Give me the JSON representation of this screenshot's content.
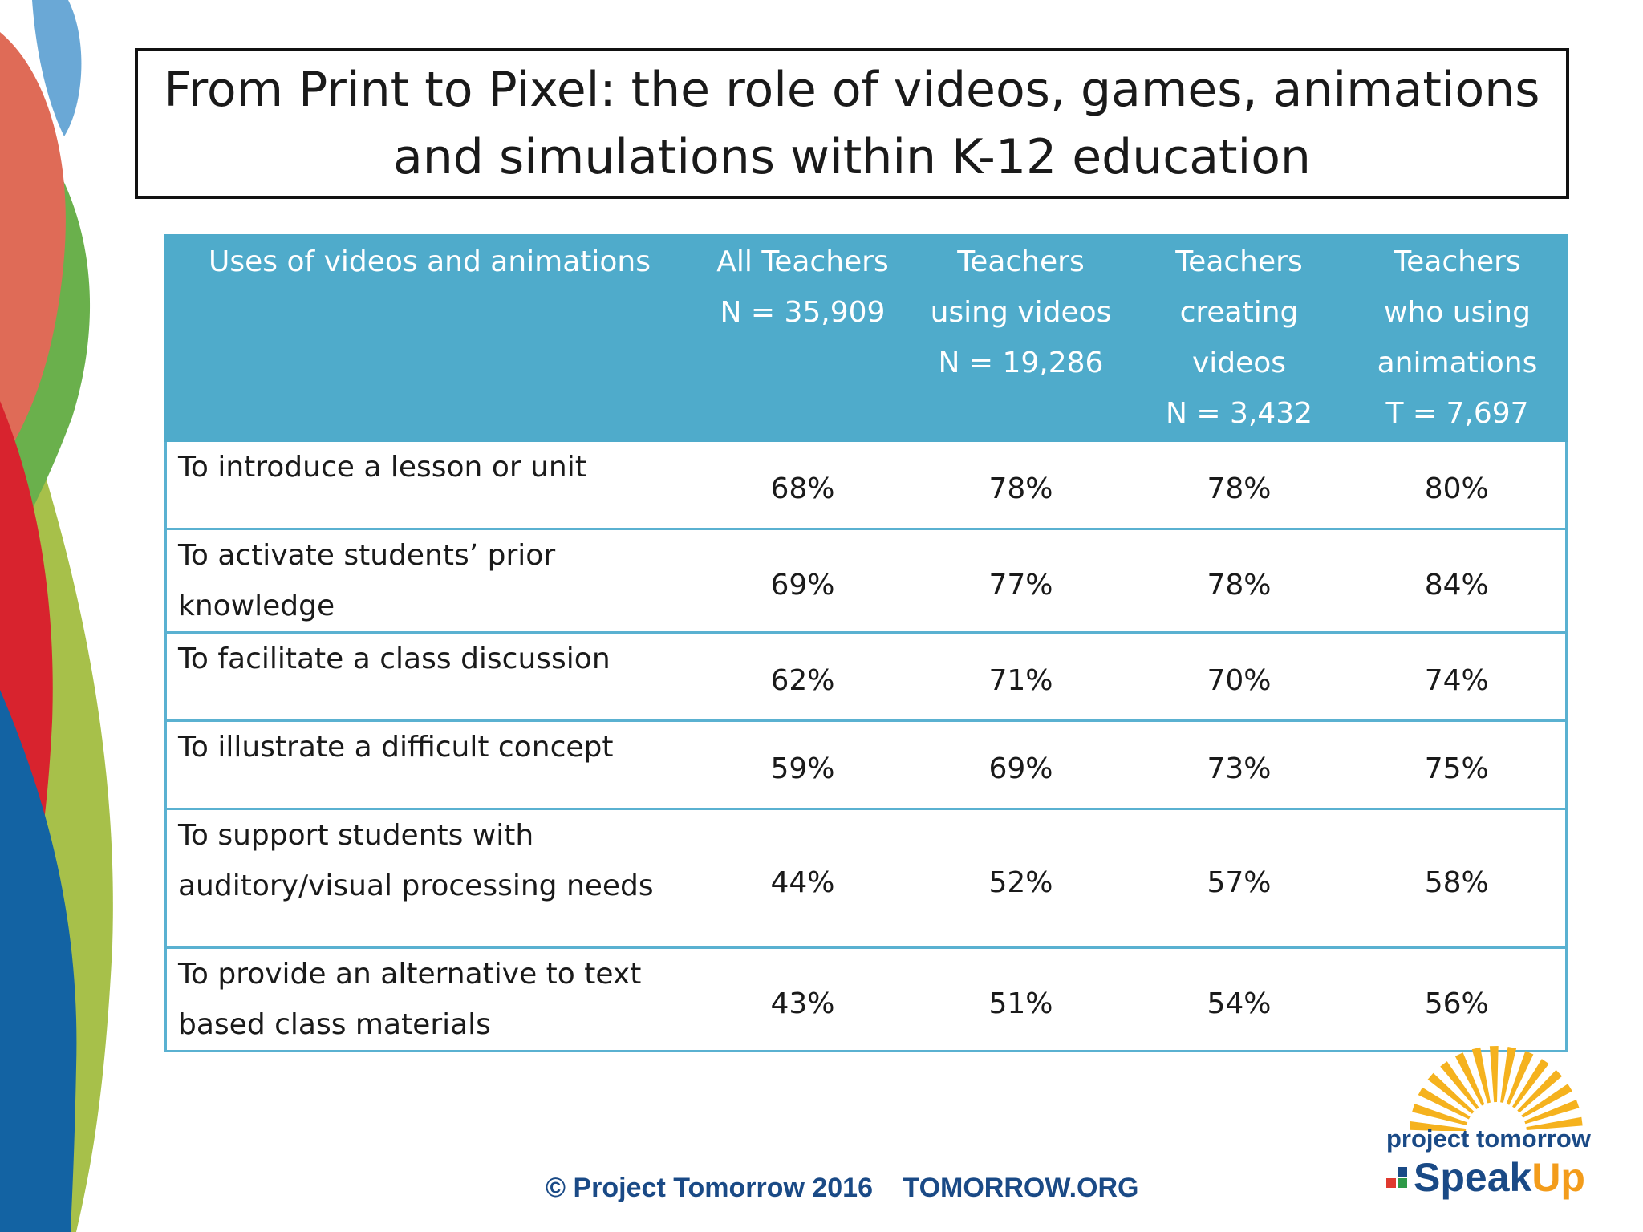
{
  "title": {
    "lines": [
      "From Print to Pixel:  the role of videos, games, animations",
      "and simulations within K-12 education"
    ]
  },
  "table": {
    "columns": [
      {
        "lines": [
          "Uses of videos and animations"
        ]
      },
      {
        "lines": [
          "All Teachers",
          "N = 35,909"
        ]
      },
      {
        "lines": [
          "Teachers",
          "using videos",
          "N = 19,286"
        ]
      },
      {
        "lines": [
          "Teachers",
          "creating",
          "videos",
          "N = 3,432"
        ]
      },
      {
        "lines": [
          "Teachers",
          "who using",
          "animations",
          "T = 7,697"
        ]
      }
    ],
    "rows": [
      {
        "use": [
          "To introduce a lesson or unit"
        ],
        "values": [
          "68%",
          "78%",
          "78%",
          "80%"
        ]
      },
      {
        "use": [
          "To activate students’ prior",
          "knowledge"
        ],
        "values": [
          "69%",
          "77%",
          "78%",
          "84%"
        ]
      },
      {
        "use": [
          "To facilitate a class discussion"
        ],
        "values": [
          "62%",
          "71%",
          "70%",
          "74%"
        ]
      },
      {
        "use": [
          "To illustrate a difficult concept"
        ],
        "values": [
          "59%",
          "69%",
          "73%",
          "75%"
        ]
      },
      {
        "use": [
          "To support students with",
          "auditory/visual processing needs"
        ],
        "values": [
          "44%",
          "52%",
          "57%",
          "58%"
        ]
      },
      {
        "use": [
          "To provide an alternative to text",
          "based class materials"
        ],
        "values": [
          "43%",
          "51%",
          "54%",
          "56%"
        ]
      }
    ]
  },
  "footer": {
    "copyright": "© Project Tomorrow 2016",
    "site": "TOMORROW.ORG"
  },
  "logo": {
    "org": "project tomorrow",
    "program_a": "Speak",
    "program_b": "Up",
    "colors": {
      "sun": "#f5b21e",
      "navy": "#1a4a86",
      "orange": "#f39c1b",
      "squares": [
        "#e03a2f",
        "#2e9a48",
        "#1a4a86",
        "#f5b21e"
      ]
    }
  },
  "colors": {
    "header_bg": "#4fabcb",
    "border": "#5ab1d1",
    "title_border": "#111111",
    "ribbons": [
      "#6aa8d6",
      "#df6b57",
      "#6ab04c",
      "#d8232e",
      "#a7c04a",
      "#1363a3"
    ]
  }
}
